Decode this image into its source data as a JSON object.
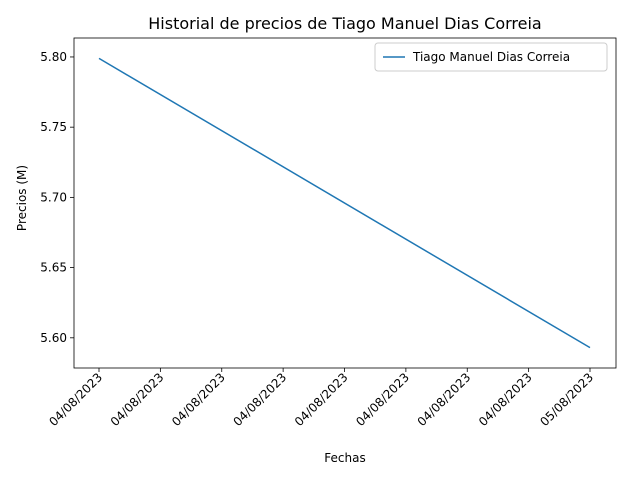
{
  "chart_data": {
    "type": "line",
    "title": "Historial de precios de Tiago Manuel Dias Correia",
    "xlabel": "Fechas",
    "ylabel": "Precios (M)",
    "x_tick_labels": [
      "04/08/2023",
      "04/08/2023",
      "04/08/2023",
      "04/08/2023",
      "04/08/2023",
      "04/08/2023",
      "04/08/2023",
      "04/08/2023",
      "05/08/2023"
    ],
    "y_ticks": [
      5.6,
      5.65,
      5.7,
      5.75,
      5.8
    ],
    "y_tick_labels": [
      "5.60",
      "5.65",
      "5.70",
      "5.75",
      "5.80"
    ],
    "ylim": [
      5.5785,
      5.8135
    ],
    "grid": false,
    "legend_position": "top-right",
    "series": [
      {
        "name": "Tiago Manuel Dias Correia",
        "color": "#1f77b4",
        "x": [
          "04/08/2023",
          "05/08/2023"
        ],
        "values": [
          5.799,
          5.593
        ]
      }
    ]
  }
}
